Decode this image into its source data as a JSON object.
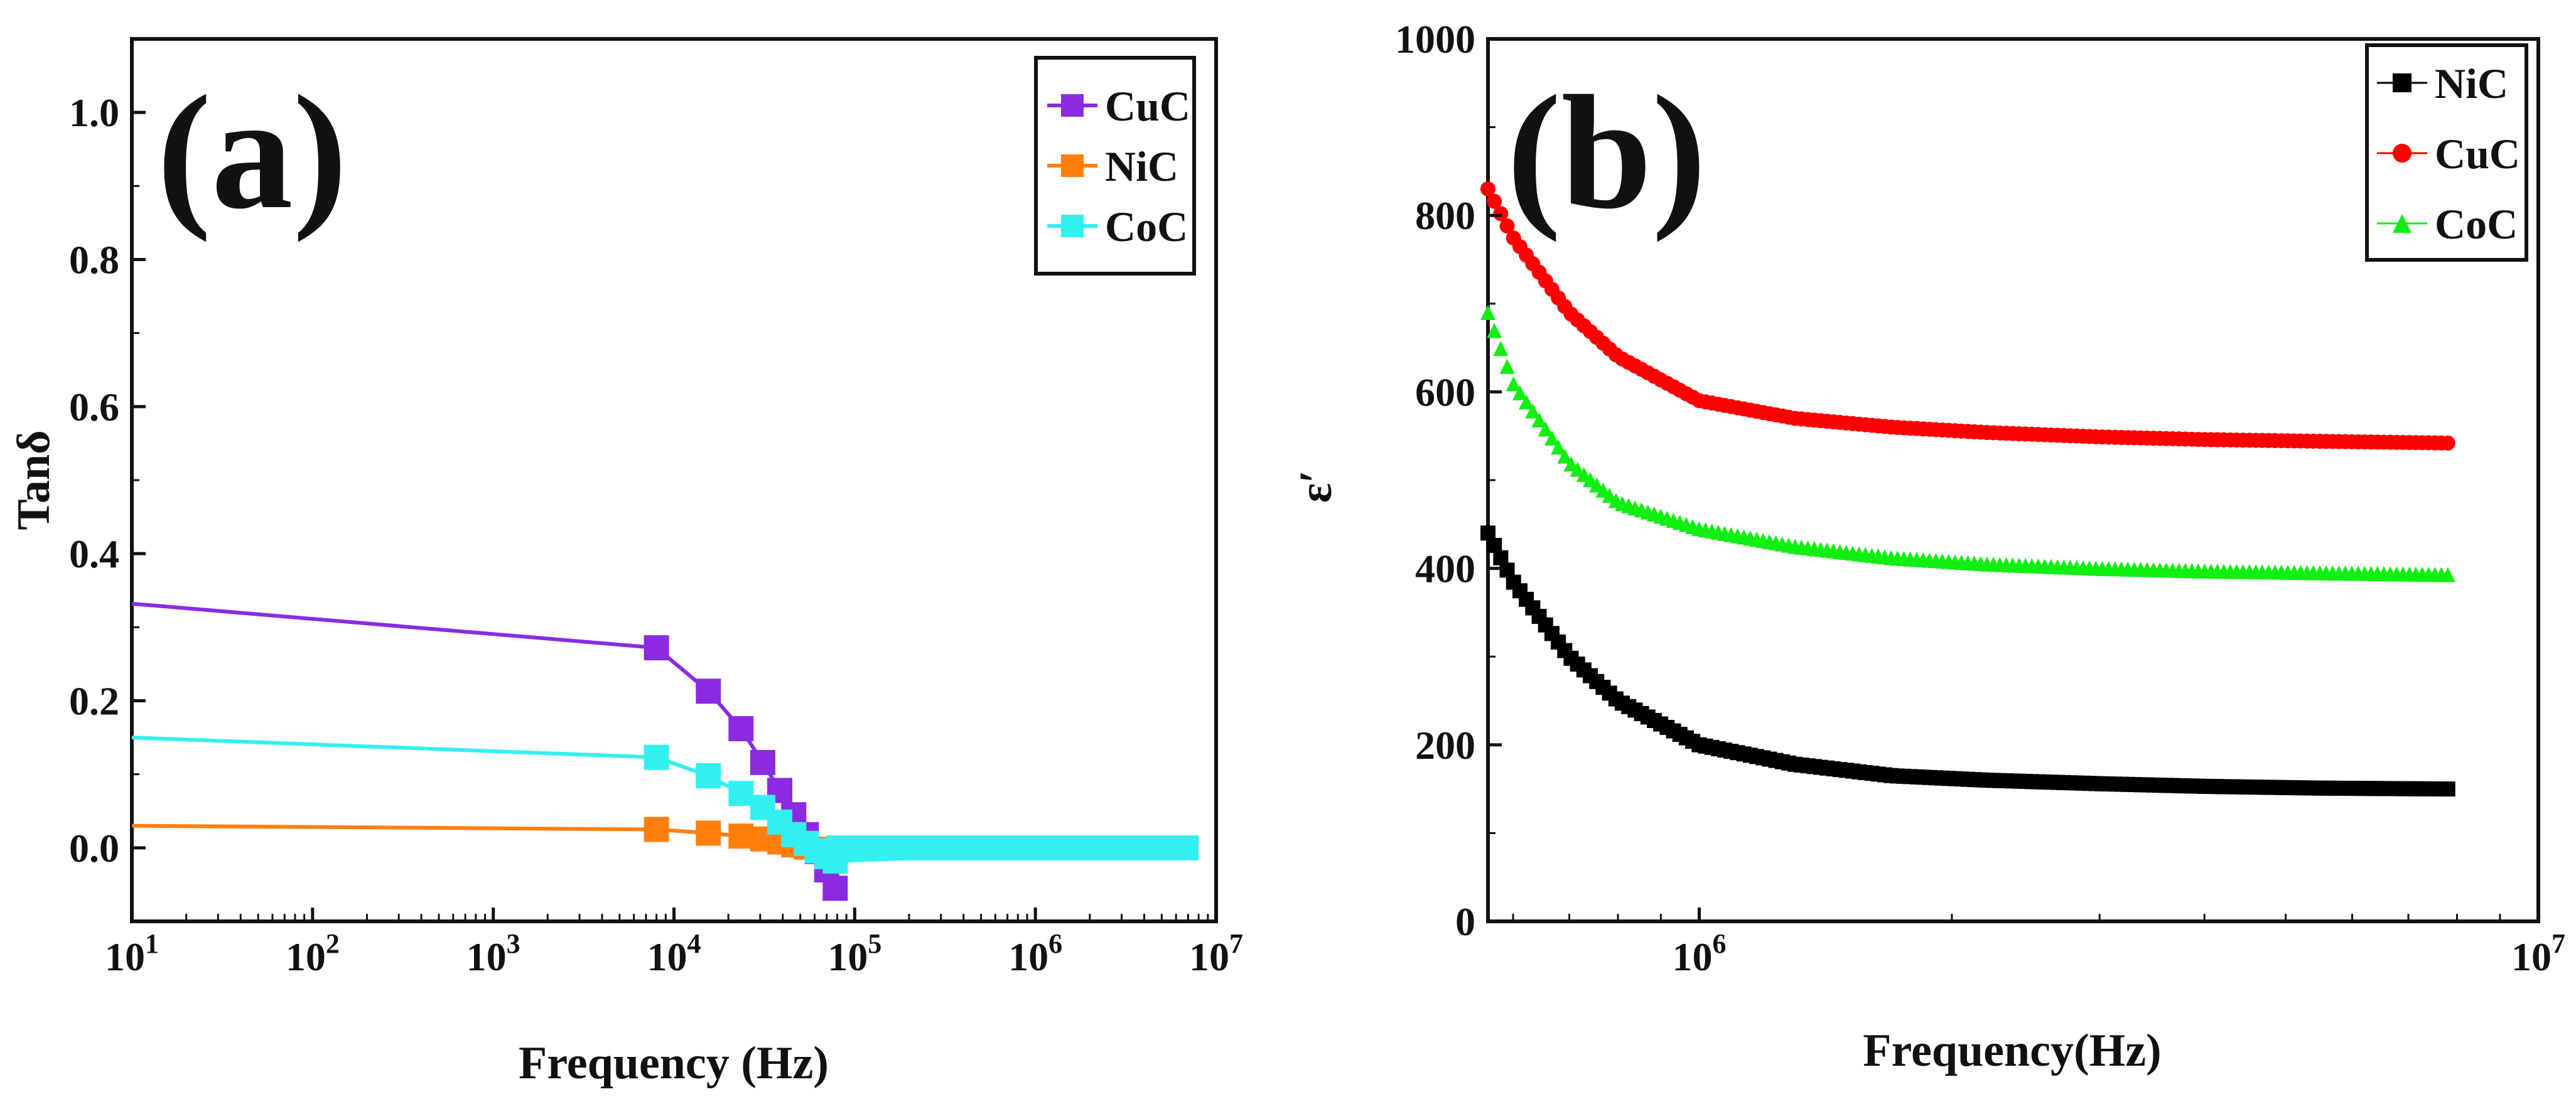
{
  "chart_data": [
    {
      "type": "line",
      "panel_label": "(a)",
      "xscale": "log",
      "xlabel": "Frequency (Hz)",
      "ylabel": "Tanδ",
      "xlim": [
        10,
        10000000
      ],
      "ylim": [
        -0.1,
        1.1
      ],
      "xticks": [
        {
          "value": 10,
          "base": "10",
          "exp": "1"
        },
        {
          "value": 100,
          "base": "10",
          "exp": "2"
        },
        {
          "value": 1000,
          "base": "10",
          "exp": "3"
        },
        {
          "value": 10000,
          "base": "10",
          "exp": "4"
        },
        {
          "value": 100000,
          "base": "10",
          "exp": "5"
        },
        {
          "value": 1000000,
          "base": "10",
          "exp": "6"
        },
        {
          "value": 10000000,
          "base": "10",
          "exp": "7"
        }
      ],
      "yticks": [
        {
          "value": 0.0,
          "label": "0.0"
        },
        {
          "value": 0.2,
          "label": "0.2"
        },
        {
          "value": 0.4,
          "label": "0.4"
        },
        {
          "value": 0.6,
          "label": "0.6"
        },
        {
          "value": 0.8,
          "label": "0.8"
        },
        {
          "value": 1.0,
          "label": "1.0"
        }
      ],
      "legend_position": "top-right",
      "series": [
        {
          "name": "CuC",
          "color": "#8a2be2",
          "marker": "square",
          "x": [
            10,
            8000,
            15500,
            23500,
            31000,
            38500,
            46000,
            54000,
            62000,
            70000,
            78000
          ],
          "y": [
            0.332,
            0.272,
            0.213,
            0.162,
            0.116,
            0.078,
            0.045,
            0.018,
            -0.005,
            -0.03,
            -0.055
          ]
        },
        {
          "name": "NiC",
          "color": "#ff7f0e",
          "marker": "square",
          "x": [
            10,
            8000,
            15500,
            23500,
            31000,
            38500,
            46000,
            54000,
            62000,
            70000,
            78000
          ],
          "y": [
            0.03,
            0.025,
            0.02,
            0.016,
            0.012,
            0.008,
            0.004,
            0.001,
            -0.002,
            -0.003,
            -0.004
          ]
        },
        {
          "name": "CoC",
          "color": "#33f0f0",
          "marker": "square",
          "x": [
            10,
            8000,
            15500,
            23500,
            31000,
            38500,
            46000,
            54000,
            62000,
            70000,
            78000,
            8000000
          ],
          "y": [
            0.15,
            0.123,
            0.098,
            0.074,
            0.055,
            0.035,
            0.018,
            0.006,
            -0.004,
            -0.012,
            -0.018,
            0.0
          ]
        }
      ]
    },
    {
      "type": "line",
      "panel_label": "(b)",
      "xscale": "log",
      "xlabel": "Frequency(Hz)",
      "ylabel": "ε′",
      "xlim": [
        560000,
        10000000
      ],
      "ylim": [
        0,
        1000
      ],
      "xticks": [
        {
          "value": 1000000,
          "base": "10",
          "exp": "6"
        },
        {
          "value": 10000000,
          "base": "10",
          "exp": "7"
        }
      ],
      "yticks": [
        {
          "value": 0,
          "label": "0"
        },
        {
          "value": 200,
          "label": "200"
        },
        {
          "value": 400,
          "label": "400"
        },
        {
          "value": 600,
          "label": "600"
        },
        {
          "value": 800,
          "label": "800"
        },
        {
          "value": 1000,
          "label": "1000"
        }
      ],
      "legend_position": "top-right",
      "series": [
        {
          "name": "NiC",
          "color": "#000000",
          "marker": "square",
          "x": [
            560000,
            600000,
            700000,
            800000,
            1000000,
            1300000,
            1700000,
            2200000,
            3000000,
            4000000,
            5500000,
            7800000
          ],
          "y": [
            440,
            385,
            300,
            250,
            200,
            178,
            165,
            160,
            156,
            153,
            151,
            150
          ]
        },
        {
          "name": "CuC",
          "color": "#ff0000",
          "marker": "circle",
          "x": [
            560000,
            600000,
            700000,
            800000,
            1000000,
            1300000,
            1700000,
            2200000,
            3000000,
            4000000,
            5500000,
            7800000
          ],
          "y": [
            830,
            775,
            690,
            640,
            590,
            570,
            560,
            554,
            549,
            546,
            544,
            542
          ]
        },
        {
          "name": "CoC",
          "color": "#11ee11",
          "marker": "triangle",
          "x": [
            560000,
            600000,
            700000,
            800000,
            1000000,
            1300000,
            1700000,
            2200000,
            3000000,
            4000000,
            5500000,
            7800000
          ],
          "y": [
            690,
            610,
            520,
            475,
            445,
            425,
            412,
            405,
            400,
            397,
            395,
            393
          ]
        }
      ]
    }
  ]
}
